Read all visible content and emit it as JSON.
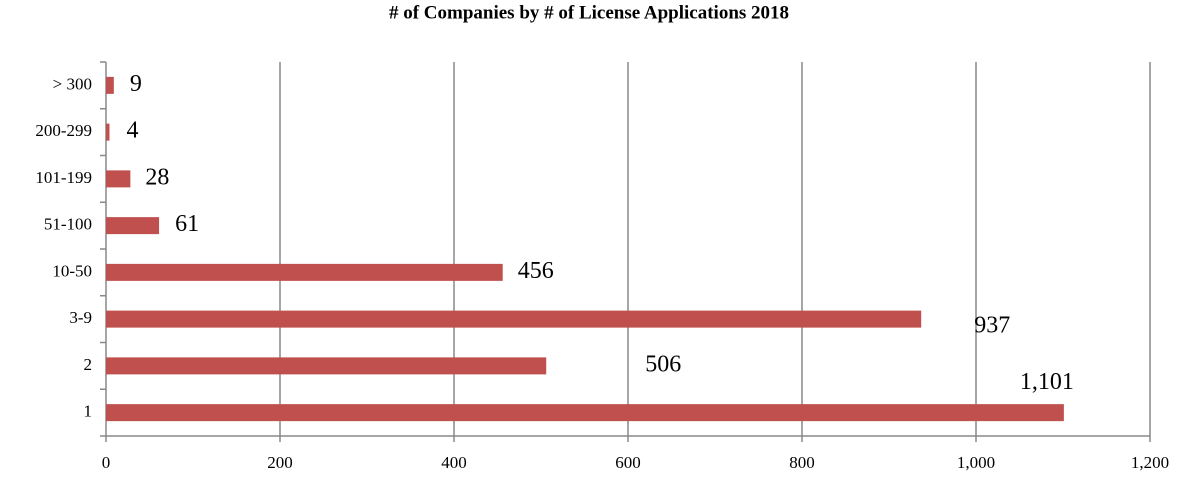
{
  "chart_data": {
    "type": "bar",
    "orientation": "horizontal",
    "title": "# of Companies by # of License Applications 2018",
    "categories": [
      "1",
      "2",
      "3-9",
      "10-50",
      "51-100",
      "101-199",
      "200-299",
      "> 300"
    ],
    "values": [
      1101,
      506,
      937,
      456,
      61,
      28,
      4,
      9
    ],
    "value_labels": [
      "1,101",
      "506",
      "937",
      "456",
      "61",
      "28",
      "4",
      "9"
    ],
    "color": "#c0504d",
    "xlim": [
      0,
      1200
    ],
    "xticks": [
      0,
      200,
      400,
      600,
      800,
      {
        "value": 1000,
        "label": "1,000"
      },
      {
        "value": 1200,
        "label": "1,200"
      }
    ],
    "grid": true
  }
}
